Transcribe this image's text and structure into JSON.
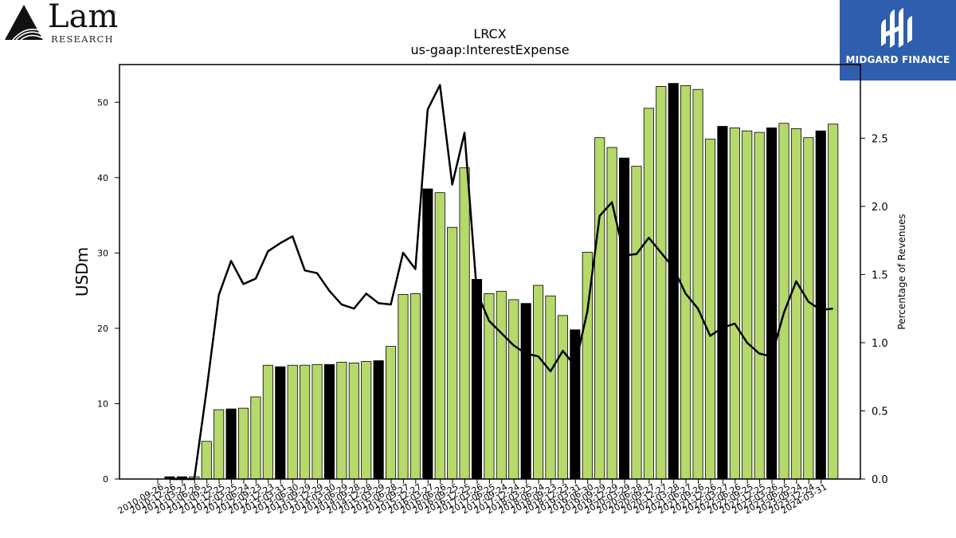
{
  "logos": {
    "lam": {
      "name": "Lam",
      "registered": "®",
      "sub": "RESEARCH"
    },
    "midgard": {
      "name": "MIDGARD FINANCE"
    }
  },
  "colors": {
    "bar_green": "#b5d96b",
    "bar_black": "#000000",
    "line": "#000000"
  },
  "chart_data": {
    "type": "bar",
    "title": "LRCX",
    "subtitle": "us-gaap:InterestExpense",
    "ylabel": "USDm",
    "y2label": "Percentage of Revenues",
    "ylim": [
      0,
      55
    ],
    "y2lim": [
      0,
      3.04
    ],
    "yticks": [
      0,
      10,
      20,
      30,
      40,
      50
    ],
    "y2ticks": [
      0.0,
      0.5,
      1.0,
      1.5,
      2.0,
      2.5
    ],
    "xtick_labels": [
      "2010-09-26",
      "2010-12-26",
      "2011-03-27",
      "2011-06-26",
      "2011-09-25",
      "2011-12-25",
      "2012-03-25",
      "2012-06-24",
      "2012-09-23",
      "2012-12-23",
      "2013-03-31",
      "2013-06-30",
      "2013-09-29",
      "2013-12-29",
      "2014-03-30",
      "2014-06-29",
      "2014-09-28",
      "2014-12-28",
      "2015-03-29",
      "2015-06-28",
      "2015-09-27",
      "2015-12-27",
      "2016-03-27",
      "2016-06-26",
      "2016-09-25",
      "2016-12-25",
      "2017-03-26",
      "2017-06-25",
      "2017-09-24",
      "2017-12-24",
      "2018-03-25",
      "2018-06-24",
      "2018-09-23",
      "2018-12-23",
      "2019-03-31",
      "2019-06-30",
      "2019-09-29",
      "2019-12-29",
      "2020-03-29",
      "2020-06-28",
      "2020-09-27",
      "2020-12-27",
      "2021-03-28",
      "2021-06-27",
      "2021-09-26",
      "2021-12-26",
      "2022-03-27",
      "2022-06-26",
      "2022-09-25",
      "2022-12-25",
      "2023-03-26",
      "2023-06-25",
      "2023-09-24",
      "2023-12-24",
      "2024-03-31"
    ],
    "values": [
      0.3,
      0.3,
      0.3,
      5.0,
      9.2,
      9.3,
      9.4,
      10.9,
      15.1,
      14.9,
      15.1,
      15.1,
      15.2,
      15.2,
      15.5,
      15.4,
      15.6,
      15.7,
      17.6,
      24.5,
      24.6,
      38.5,
      38.0,
      33.4,
      41.3,
      26.5,
      24.6,
      24.9,
      23.8,
      23.3,
      25.7,
      24.3,
      21.7,
      19.8,
      30.1,
      45.3,
      44.0,
      42.6,
      41.5,
      49.2,
      52.1,
      52.5,
      52.2,
      51.7,
      45.1,
      46.8,
      46.6,
      46.2,
      46.0,
      46.6,
      47.2,
      46.5,
      45.3,
      46.2,
      47.1
    ],
    "bar_black": [
      true,
      true,
      false,
      false,
      false,
      true,
      false,
      false,
      false,
      true,
      false,
      false,
      false,
      true,
      false,
      false,
      false,
      true,
      false,
      false,
      false,
      true,
      false,
      false,
      false,
      true,
      false,
      false,
      false,
      true,
      false,
      false,
      false,
      true,
      false,
      false,
      false,
      true,
      false,
      false,
      false,
      true,
      false,
      false,
      false,
      true,
      false,
      false,
      false,
      true,
      false,
      false,
      false,
      true,
      false
    ],
    "pct_revenues": [
      0.0,
      0.0,
      0.0,
      0.65,
      1.35,
      1.6,
      1.43,
      1.47,
      1.67,
      1.73,
      1.78,
      1.53,
      1.51,
      1.38,
      1.28,
      1.25,
      1.36,
      1.29,
      1.28,
      1.66,
      1.54,
      2.71,
      2.89,
      2.16,
      2.54,
      1.37,
      1.16,
      1.07,
      0.98,
      0.92,
      0.9,
      0.79,
      0.94,
      0.83,
      1.23,
      1.93,
      2.03,
      1.64,
      1.65,
      1.77,
      1.66,
      1.55,
      1.36,
      1.25,
      1.05,
      1.11,
      1.14,
      1.0,
      0.92,
      0.9,
      1.22,
      1.45,
      1.3,
      1.24,
      1.25
    ],
    "grid": false,
    "legend": "none"
  }
}
